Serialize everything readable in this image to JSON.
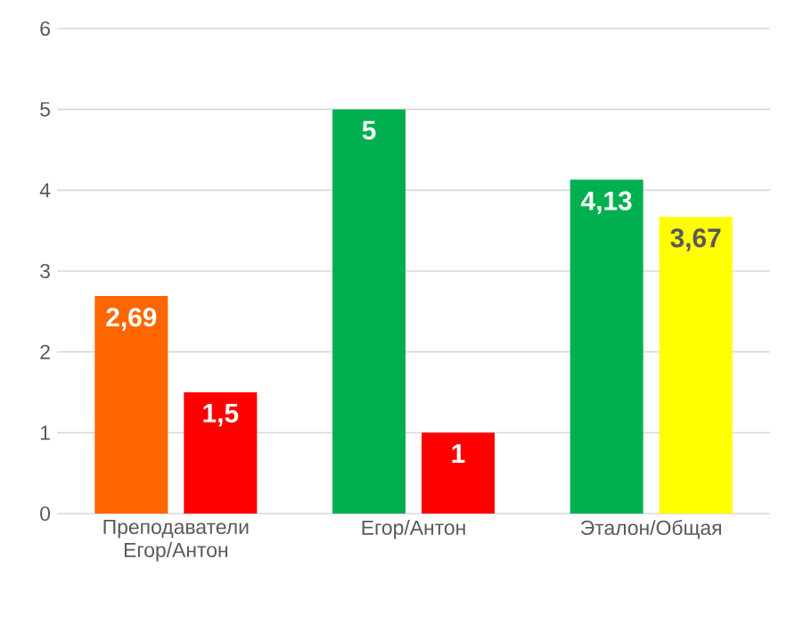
{
  "chart_data": {
    "type": "bar",
    "categories": [
      "Преподаватели Егор/Антон",
      "Егор/Антон",
      "Эталон/Общая"
    ],
    "series": [
      {
        "colors": [
          "#ff6600",
          "#00b050",
          "#00b050"
        ],
        "values": [
          2.69,
          5,
          4.13
        ],
        "value_labels": [
          "2,69",
          "5",
          "4,13"
        ]
      },
      {
        "colors": [
          "#ff0000",
          "#ff0000",
          "#ffff00"
        ],
        "values": [
          1.5,
          1,
          3.67
        ],
        "value_labels": [
          "1,5",
          "1",
          "3,67"
        ]
      }
    ],
    "ylim": [
      0,
      6
    ],
    "yticks": [
      0,
      1,
      2,
      3,
      4,
      5,
      6
    ],
    "grid": "y"
  }
}
